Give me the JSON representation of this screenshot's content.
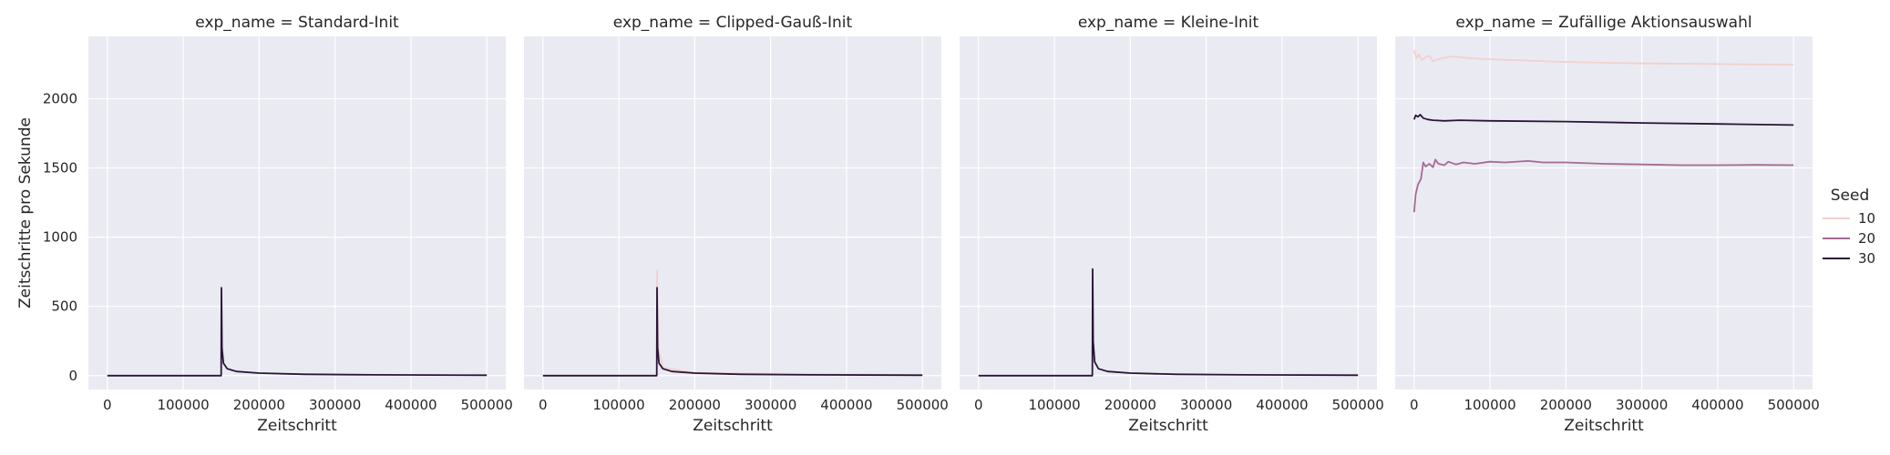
{
  "chart_data": {
    "type": "line",
    "ylabel": "Zeitschritte pro Sekunde",
    "xlabel": "Zeitschritt",
    "xlim": [
      0,
      500000
    ],
    "ylim": [
      -100,
      2450
    ],
    "x_ticks": [
      0,
      100000,
      200000,
      300000,
      400000,
      500000
    ],
    "y_ticks": [
      0,
      500,
      1000,
      1500,
      2000
    ],
    "grid": true,
    "legend": {
      "title": "Seed",
      "position": "right",
      "entries": [
        {
          "label": "10",
          "color": "#f1d1ce"
        },
        {
          "label": "20",
          "color": "#a66a92"
        },
        {
          "label": "30",
          "color": "#2a1538"
        }
      ]
    },
    "panels": [
      {
        "title": "exp_name = Standard-Init",
        "series": [
          {
            "seed": "30",
            "points": [
              [
                0,
                0
              ],
              [
                149500,
                0
              ],
              [
                150000,
                0
              ],
              [
                150300,
                635
              ],
              [
                151000,
                200
              ],
              [
                153000,
                90
              ],
              [
                158000,
                50
              ],
              [
                170000,
                30
              ],
              [
                200000,
                18
              ],
              [
                260000,
                10
              ],
              [
                350000,
                6
              ],
              [
                500000,
                3
              ]
            ]
          }
        ]
      },
      {
        "title": "exp_name = Clipped-Gauß-Init",
        "series": [
          {
            "seed": "10",
            "points": [
              [
                0,
                0
              ],
              [
                150000,
                0
              ],
              [
                150300,
                760
              ],
              [
                152000,
                200
              ],
              [
                158000,
                60
              ],
              [
                200000,
                20
              ],
              [
                500000,
                4
              ]
            ]
          },
          {
            "seed": "30",
            "points": [
              [
                0,
                0
              ],
              [
                149500,
                0
              ],
              [
                150000,
                0
              ],
              [
                150300,
                635
              ],
              [
                151000,
                200
              ],
              [
                153000,
                90
              ],
              [
                158000,
                50
              ],
              [
                170000,
                30
              ],
              [
                200000,
                18
              ],
              [
                260000,
                10
              ],
              [
                350000,
                6
              ],
              [
                500000,
                3
              ]
            ]
          }
        ]
      },
      {
        "title": "exp_name = Kleine-Init",
        "series": [
          {
            "seed": "30",
            "points": [
              [
                0,
                0
              ],
              [
                149500,
                0
              ],
              [
                150000,
                0
              ],
              [
                150300,
                770
              ],
              [
                151000,
                250
              ],
              [
                153000,
                100
              ],
              [
                158000,
                50
              ],
              [
                170000,
                30
              ],
              [
                200000,
                18
              ],
              [
                260000,
                10
              ],
              [
                350000,
                6
              ],
              [
                500000,
                3
              ]
            ]
          }
        ]
      },
      {
        "title": "exp_name = Zufällige Aktionsauswahl",
        "series": [
          {
            "seed": "10",
            "points": [
              [
                0,
                2350
              ],
              [
                3000,
                2290
              ],
              [
                6000,
                2320
              ],
              [
                10000,
                2280
              ],
              [
                15000,
                2300
              ],
              [
                20000,
                2310
              ],
              [
                25000,
                2270
              ],
              [
                35000,
                2290
              ],
              [
                50000,
                2305
              ],
              [
                60000,
                2300
              ],
              [
                80000,
                2290
              ],
              [
                100000,
                2285
              ],
              [
                150000,
                2275
              ],
              [
                200000,
                2265
              ],
              [
                300000,
                2255
              ],
              [
                400000,
                2250
              ],
              [
                500000,
                2245
              ]
            ]
          },
          {
            "seed": "20",
            "points": [
              [
                0,
                1180
              ],
              [
                2000,
                1310
              ],
              [
                5000,
                1380
              ],
              [
                9000,
                1420
              ],
              [
                12000,
                1540
              ],
              [
                15000,
                1510
              ],
              [
                20000,
                1530
              ],
              [
                25000,
                1505
              ],
              [
                28000,
                1560
              ],
              [
                32000,
                1530
              ],
              [
                40000,
                1520
              ],
              [
                45000,
                1545
              ],
              [
                55000,
                1525
              ],
              [
                65000,
                1540
              ],
              [
                80000,
                1530
              ],
              [
                100000,
                1545
              ],
              [
                120000,
                1540
              ],
              [
                150000,
                1550
              ],
              [
                170000,
                1540
              ],
              [
                200000,
                1540
              ],
              [
                250000,
                1530
              ],
              [
                300000,
                1525
              ],
              [
                350000,
                1520
              ],
              [
                400000,
                1520
              ],
              [
                450000,
                1522
              ],
              [
                500000,
                1520
              ]
            ]
          },
          {
            "seed": "30",
            "points": [
              [
                0,
                1850
              ],
              [
                2000,
                1880
              ],
              [
                5000,
                1870
              ],
              [
                8000,
                1885
              ],
              [
                12000,
                1860
              ],
              [
                18000,
                1850
              ],
              [
                25000,
                1845
              ],
              [
                40000,
                1840
              ],
              [
                60000,
                1845
              ],
              [
                100000,
                1840
              ],
              [
                200000,
                1835
              ],
              [
                300000,
                1825
              ],
              [
                400000,
                1818
              ],
              [
                500000,
                1810
              ]
            ]
          }
        ]
      }
    ]
  }
}
